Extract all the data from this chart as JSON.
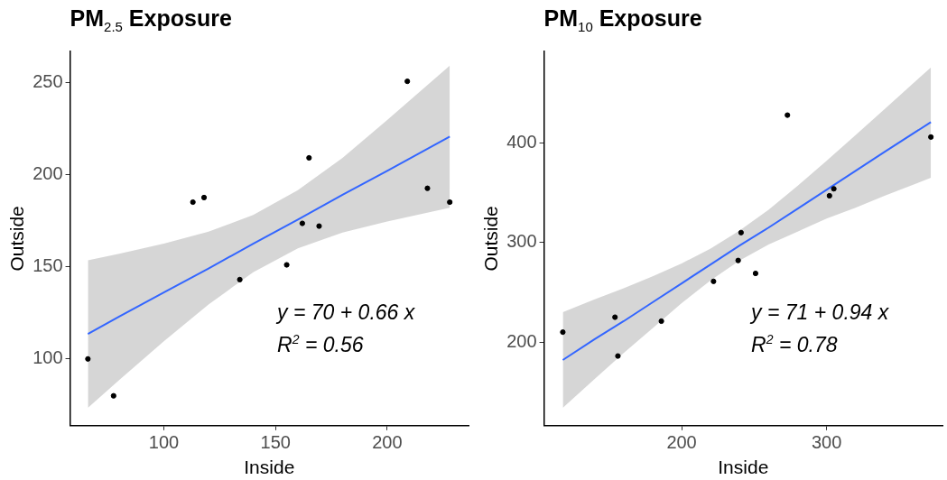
{
  "chart_data": [
    {
      "type": "scatter",
      "title": "PM$_{2.5}$ Exposure",
      "xlabel": "Inside",
      "ylabel": "Outside",
      "xlim": [
        58,
        236.4
      ],
      "ylim": [
        63.8,
        266.7
      ],
      "xticks": [
        100,
        150,
        200
      ],
      "yticks": [
        100,
        150,
        200,
        250
      ],
      "grid": false,
      "legend": false,
      "line_style": "solid",
      "annotations": [
        "y = 70 + 0.66 x",
        "R$^{2}$ = 0.56"
      ],
      "series": [
        {
          "color": "#000000",
          "marker": "circle",
          "x": [
            66,
            77.5,
            113,
            118,
            134,
            155,
            162,
            165,
            169.5,
            209,
            218,
            228
          ],
          "values": [
            100,
            80,
            185,
            187.5,
            143,
            151,
            173.5,
            209,
            172,
            250.5,
            192.5,
            185
          ]
        },
        {
          "type": "line",
          "marker": "none",
          "color": "#3366ff",
          "x": [
            66,
            80,
            100,
            120,
            140,
            160,
            180,
            200,
            228
          ],
          "values": [
            113.5,
            123,
            136,
            149,
            162.5,
            175.5,
            189,
            202,
            220.5
          ],
          "lower": [
            73.5,
            88.5,
            109.5,
            129.5,
            147,
            160,
            168.5,
            174.5,
            182
          ],
          "upper": [
            153.5,
            157,
            162.5,
            169,
            178,
            191.5,
            209,
            229.5,
            259
          ]
        }
      ]
    },
    {
      "type": "scatter",
      "title": "PM$_{10}$ Exposure",
      "xlabel": "Inside",
      "ylabel": "Outside",
      "xlim": [
        105,
        380
      ],
      "ylim": [
        116,
        492
      ],
      "xticks": [
        200,
        300
      ],
      "yticks": [
        200,
        300,
        400
      ],
      "grid": false,
      "legend": false,
      "line_style": "solid",
      "annotations": [
        "y = 71 + 0.94 x",
        "R$^{2}$ = 0.78"
      ],
      "series": [
        {
          "color": "#000000",
          "marker": "circle",
          "x": [
            118,
            154,
            156,
            186,
            222,
            239,
            241,
            251,
            273,
            302,
            305,
            372
          ],
          "values": [
            210,
            225,
            186,
            221,
            261,
            282,
            310,
            269,
            428,
            347,
            354,
            406
          ]
        },
        {
          "type": "line",
          "marker": "none",
          "color": "#3366ff",
          "x": [
            118,
            140,
            160,
            180,
            200,
            220,
            240,
            260,
            280,
            300,
            320,
            340,
            372
          ],
          "values": [
            182,
            203,
            221,
            240,
            259,
            278,
            297,
            315,
            334,
            353,
            372,
            391,
            421
          ],
          "lower": [
            134,
            163,
            189,
            214,
            239,
            262,
            282,
            298,
            311,
            324,
            335,
            347,
            365
          ],
          "upper": [
            230,
            243,
            254,
            266,
            279,
            294,
            312,
            333,
            357,
            382,
            408,
            434,
            476
          ]
        }
      ]
    }
  ]
}
